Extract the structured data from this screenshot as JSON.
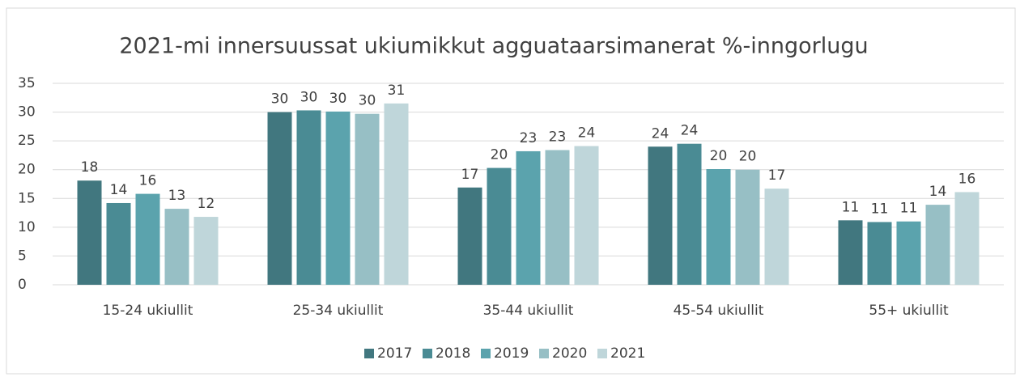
{
  "chart_data": {
    "type": "bar",
    "title": "2021-mi innersuussat ukiumikkut agguataarsimanerat %-inngorlugu",
    "categories": [
      "15-24 ukiullit",
      "25-34 ukiullit",
      "35-44 ukiullit",
      "45-54 ukiullit",
      "55+ ukiullit"
    ],
    "series": [
      {
        "name": "2017",
        "color": "#41777f",
        "values": [
          18.1,
          30.0,
          16.9,
          24.0,
          11.2
        ],
        "value_labels": [
          "18",
          "30",
          "17",
          "24",
          "11"
        ]
      },
      {
        "name": "2018",
        "color": "#4a8b94",
        "values": [
          14.2,
          30.3,
          20.3,
          24.5,
          10.9
        ],
        "value_labels": [
          "14",
          "30",
          "20",
          "24",
          "11"
        ]
      },
      {
        "name": "2019",
        "color": "#5ba3ad",
        "values": [
          15.8,
          30.1,
          23.2,
          20.1,
          11.0
        ],
        "value_labels": [
          "16",
          "30",
          "23",
          "20",
          "11"
        ]
      },
      {
        "name": "2020",
        "color": "#97bfc5",
        "values": [
          13.2,
          29.7,
          23.4,
          20.0,
          13.9
        ],
        "value_labels": [
          "13",
          "30",
          "23",
          "20",
          "14"
        ]
      },
      {
        "name": "2021",
        "color": "#bfd6da",
        "values": [
          11.8,
          31.5,
          24.1,
          16.7,
          16.1
        ],
        "value_labels": [
          "12",
          "31",
          "24",
          "17",
          "16"
        ]
      }
    ],
    "ylim": [
      0,
      35
    ],
    "yticks": [
      0,
      5,
      10,
      15,
      20,
      25,
      30,
      35
    ],
    "grid": true,
    "legend": "bottom"
  }
}
